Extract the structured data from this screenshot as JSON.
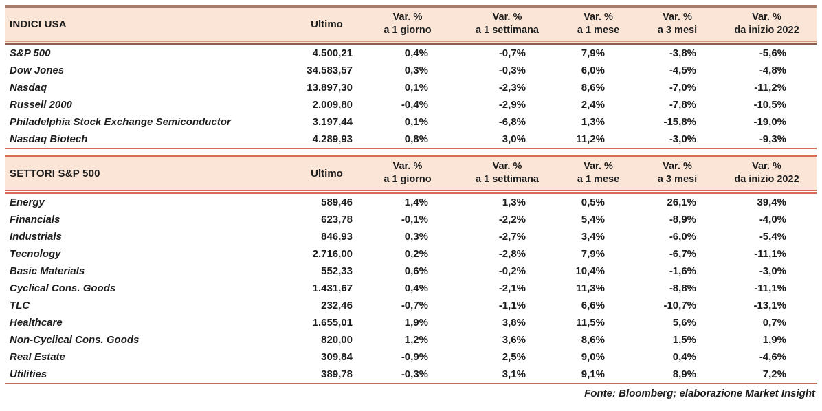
{
  "accent": {
    "band_fill": "#fbe5d6",
    "table1_border": "#a97c6c",
    "table1_rule_light": "#d39a84",
    "table1_rule_dark": "#8d5c4d",
    "table2_rule": "#d96a55",
    "bottom_rule": "#c06a56",
    "text": "#1d1d1d"
  },
  "tables": [
    {
      "title": "INDICI USA",
      "ultimo_label": "Ultimo",
      "col_headers": [
        {
          "top": "Var. %",
          "bottom": "a 1 giorno"
        },
        {
          "top": "Var. %",
          "bottom": "a 1 settimana"
        },
        {
          "top": "Var. %",
          "bottom": "a 1 mese"
        },
        {
          "top": "Var. %",
          "bottom": "a 3 mesi"
        },
        {
          "top": "Var. %",
          "bottom": "da inizio 2022"
        }
      ],
      "rows": [
        {
          "name": "S&P 500",
          "ultimo": "4.500,21",
          "values": [
            "0,4%",
            "-0,7%",
            "7,9%",
            "-3,8%",
            "-5,6%"
          ]
        },
        {
          "name": "Dow Jones",
          "ultimo": "34.583,57",
          "values": [
            "0,3%",
            "-0,3%",
            "6,0%",
            "-4,5%",
            "-4,8%"
          ]
        },
        {
          "name": "Nasdaq",
          "ultimo": "13.897,30",
          "values": [
            "0,1%",
            "-2,3%",
            "8,6%",
            "-7,0%",
            "-11,2%"
          ]
        },
        {
          "name": "Russell 2000",
          "ultimo": "2.009,80",
          "values": [
            "-0,4%",
            "-2,9%",
            "2,4%",
            "-7,8%",
            "-10,5%"
          ]
        },
        {
          "name": "Philadelphia Stock Exchange Semiconductor",
          "ultimo": "3.197,44",
          "values": [
            "0,1%",
            "-6,8%",
            "1,3%",
            "-15,8%",
            "-19,0%"
          ]
        },
        {
          "name": "Nasdaq Biotech",
          "ultimo": "4.289,93",
          "values": [
            "0,8%",
            "3,0%",
            "11,2%",
            "-3,0%",
            "-9,3%"
          ]
        }
      ]
    },
    {
      "title": "SETTORI S&P 500",
      "ultimo_label": "Ultimo",
      "col_headers": [
        {
          "top": "Var. %",
          "bottom": "a 1 giorno"
        },
        {
          "top": "Var. %",
          "bottom": "a 1 settimana"
        },
        {
          "top": "Var. %",
          "bottom": "a 1 mese"
        },
        {
          "top": "Var. %",
          "bottom": "a 3 mesi"
        },
        {
          "top": "Var. %",
          "bottom": "da inizio 2022"
        }
      ],
      "rows": [
        {
          "name": "Energy",
          "ultimo": "589,46",
          "values": [
            "1,4%",
            "1,3%",
            "0,5%",
            "26,1%",
            "39,4%"
          ]
        },
        {
          "name": "Financials",
          "ultimo": "623,78",
          "values": [
            "-0,1%",
            "-2,2%",
            "5,4%",
            "-8,9%",
            "-4,0%"
          ]
        },
        {
          "name": "Industrials",
          "ultimo": "846,93",
          "values": [
            "0,3%",
            "-2,7%",
            "3,4%",
            "-6,0%",
            "-5,4%"
          ]
        },
        {
          "name": "Tecnology",
          "ultimo": "2.716,00",
          "values": [
            "0,2%",
            "-2,8%",
            "7,9%",
            "-6,7%",
            "-11,1%"
          ]
        },
        {
          "name": "Basic Materials",
          "ultimo": "552,33",
          "values": [
            "0,6%",
            "-0,2%",
            "10,4%",
            "-1,6%",
            "-3,0%"
          ]
        },
        {
          "name": "Cyclical Cons. Goods",
          "ultimo": "1.431,67",
          "values": [
            "0,4%",
            "-2,1%",
            "11,3%",
            "-8,8%",
            "-11,1%"
          ]
        },
        {
          "name": "TLC",
          "ultimo": "232,46",
          "values": [
            "-0,7%",
            "-1,1%",
            "6,6%",
            "-10,7%",
            "-13,1%"
          ]
        },
        {
          "name": "Healthcare",
          "ultimo": "1.655,01",
          "values": [
            "1,9%",
            "3,8%",
            "11,5%",
            "5,6%",
            "0,7%"
          ]
        },
        {
          "name": "Non-Cyclical Cons. Goods",
          "ultimo": "820,00",
          "values": [
            "1,2%",
            "3,6%",
            "8,6%",
            "1,5%",
            "1,9%"
          ]
        },
        {
          "name": "Real Estate",
          "ultimo": "309,84",
          "values": [
            "-0,9%",
            "2,5%",
            "9,0%",
            "0,4%",
            "-4,6%"
          ]
        },
        {
          "name": "Utilities",
          "ultimo": "389,78",
          "values": [
            "-0,3%",
            "3,1%",
            "9,1%",
            "8,9%",
            "7,2%"
          ]
        }
      ]
    }
  ],
  "footer": {
    "source": "Fonte: Bloomberg; elaborazione Market Insight"
  }
}
